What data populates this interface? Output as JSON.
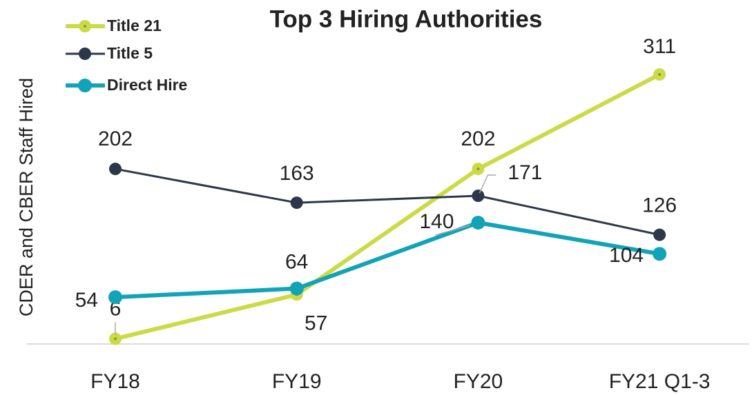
{
  "chart_data": {
    "type": "line",
    "title": "Top 3 Hiring Authorities",
    "y_label": "CDER and CBER Staff Hired",
    "categories": [
      "FY18",
      "FY19",
      "FY20",
      "FY21 Q1-3"
    ],
    "series": [
      {
        "name": "Title 21",
        "color": "#cbdb48",
        "values": [
          6,
          57,
          202,
          311
        ]
      },
      {
        "name": "Title 5",
        "color": "#2c3849",
        "values": [
          202,
          163,
          171,
          126
        ]
      },
      {
        "name": "Direct Hire",
        "color": "#12a4b6",
        "values": [
          54,
          64,
          140,
          104
        ]
      }
    ],
    "ylim": [
      0,
      350
    ],
    "legend": "top-left"
  }
}
